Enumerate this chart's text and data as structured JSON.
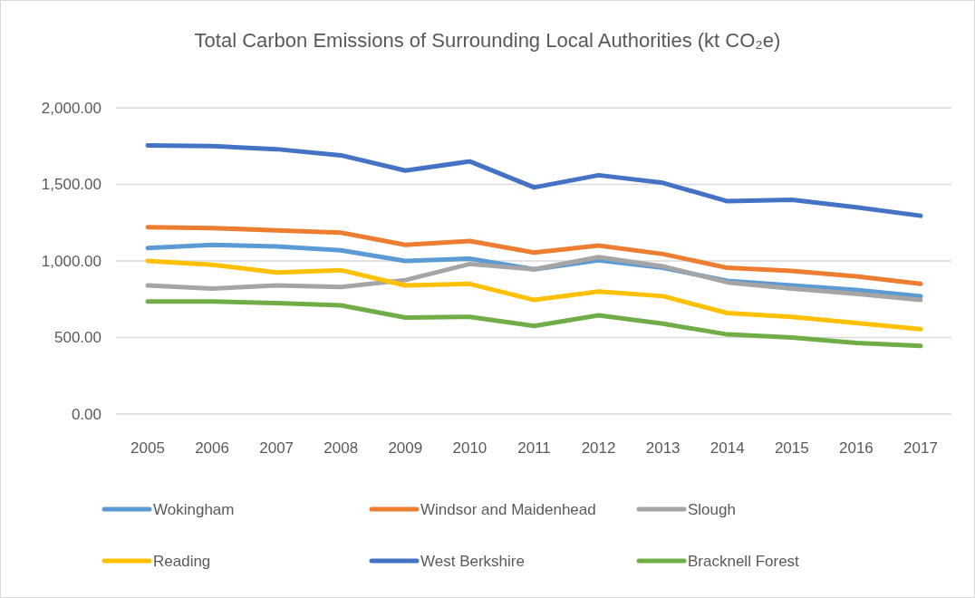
{
  "chart_data": {
    "type": "line",
    "title": "Total Carbon Emissions of Surrounding Local Authorities (kt CO₂e)",
    "categories": [
      "2005",
      "2006",
      "2007",
      "2008",
      "2009",
      "2010",
      "2011",
      "2012",
      "2013",
      "2014",
      "2015",
      "2016",
      "2017"
    ],
    "series": [
      {
        "name": "Wokingham",
        "color": "#5b9bd5",
        "values": [
          1085,
          1105,
          1095,
          1070,
          1000,
          1015,
          945,
          1005,
          955,
          870,
          840,
          810,
          770
        ]
      },
      {
        "name": "Windsor and Maidenhead",
        "color": "#ed7d31",
        "values": [
          1220,
          1215,
          1200,
          1185,
          1105,
          1130,
          1055,
          1100,
          1045,
          955,
          935,
          900,
          850
        ]
      },
      {
        "name": "Slough",
        "color": "#a5a5a5",
        "values": [
          840,
          820,
          840,
          830,
          875,
          980,
          945,
          1025,
          965,
          860,
          820,
          785,
          745
        ]
      },
      {
        "name": "Reading",
        "color": "#ffc000",
        "values": [
          1000,
          975,
          925,
          940,
          840,
          850,
          745,
          800,
          770,
          660,
          635,
          595,
          555
        ]
      },
      {
        "name": "West Berkshire",
        "color": "#4472c4",
        "values": [
          1755,
          1750,
          1730,
          1690,
          1590,
          1650,
          1480,
          1560,
          1510,
          1390,
          1400,
          1350,
          1295
        ]
      },
      {
        "name": "Bracknell Forest",
        "color": "#70ad47",
        "values": [
          735,
          735,
          725,
          710,
          630,
          635,
          575,
          645,
          590,
          520,
          500,
          465,
          445
        ]
      }
    ],
    "ylim": [
      0,
      2000
    ],
    "yticks": [
      {
        "value": 0,
        "label": "0.00"
      },
      {
        "value": 500,
        "label": "500.00"
      },
      {
        "value": 1000,
        "label": "1,000.00"
      },
      {
        "value": 1500,
        "label": "1,500.00"
      },
      {
        "value": 2000,
        "label": "2,000.00"
      }
    ],
    "grid": "y",
    "legend": "bottom",
    "line_style": "solid"
  }
}
